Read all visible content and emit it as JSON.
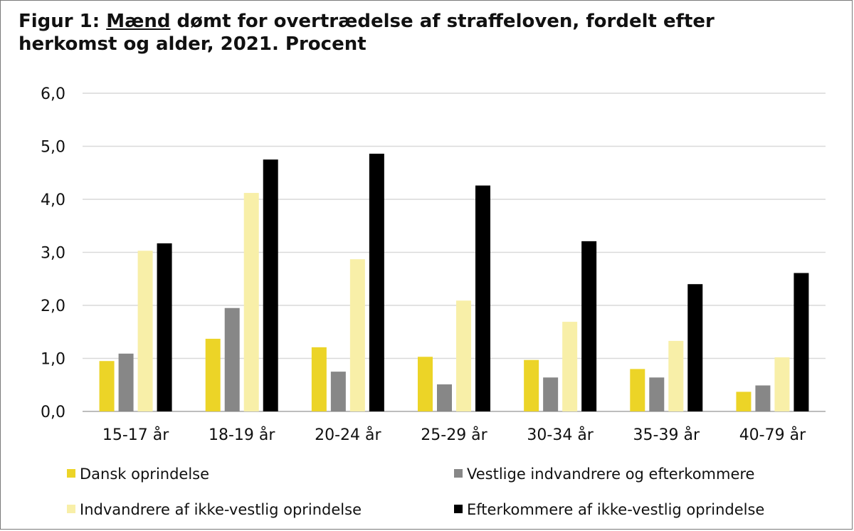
{
  "figure": {
    "title_prefix": "Figur 1: ",
    "title_underlined": "Mænd",
    "title_rest": " dømt for overtrædelse af straffeloven, fordelt efter herkomst og alder, 2021. Procent"
  },
  "chart_data": {
    "type": "bar",
    "title": "Figur 1: Mænd dømt for overtrædelse af straffeloven, fordelt efter herkomst og alder, 2021. Procent",
    "xlabel": "",
    "ylabel": "",
    "ylim": [
      0,
      6
    ],
    "yticks": [
      "0,0",
      "1,0",
      "2,0",
      "3,0",
      "4,0",
      "5,0",
      "6,0"
    ],
    "grid": true,
    "legend_position": "bottom",
    "categories": [
      "15-17 år",
      "18-19 år",
      "20-24 år",
      "25-29 år",
      "30-34 år",
      "35-39 år",
      "40-79 år"
    ],
    "series": [
      {
        "name": "Dansk oprindelse",
        "color": "#ecd427",
        "values": [
          0.95,
          1.37,
          1.21,
          1.03,
          0.97,
          0.8,
          0.37
        ]
      },
      {
        "name": "Vestlige indvandrere og efterkommere",
        "color": "#878787",
        "values": [
          1.09,
          1.95,
          0.75,
          0.51,
          0.64,
          0.64,
          0.49
        ]
      },
      {
        "name": "Indvandrere af ikke-vestlig oprindelse",
        "color": "#f8efa8",
        "values": [
          3.03,
          4.12,
          2.87,
          2.09,
          1.69,
          1.33,
          1.02
        ]
      },
      {
        "name": "Efterkommere af ikke-vestlig oprindelse",
        "color": "#000000",
        "values": [
          3.17,
          4.75,
          4.86,
          4.26,
          3.21,
          2.4,
          2.61
        ]
      }
    ]
  }
}
